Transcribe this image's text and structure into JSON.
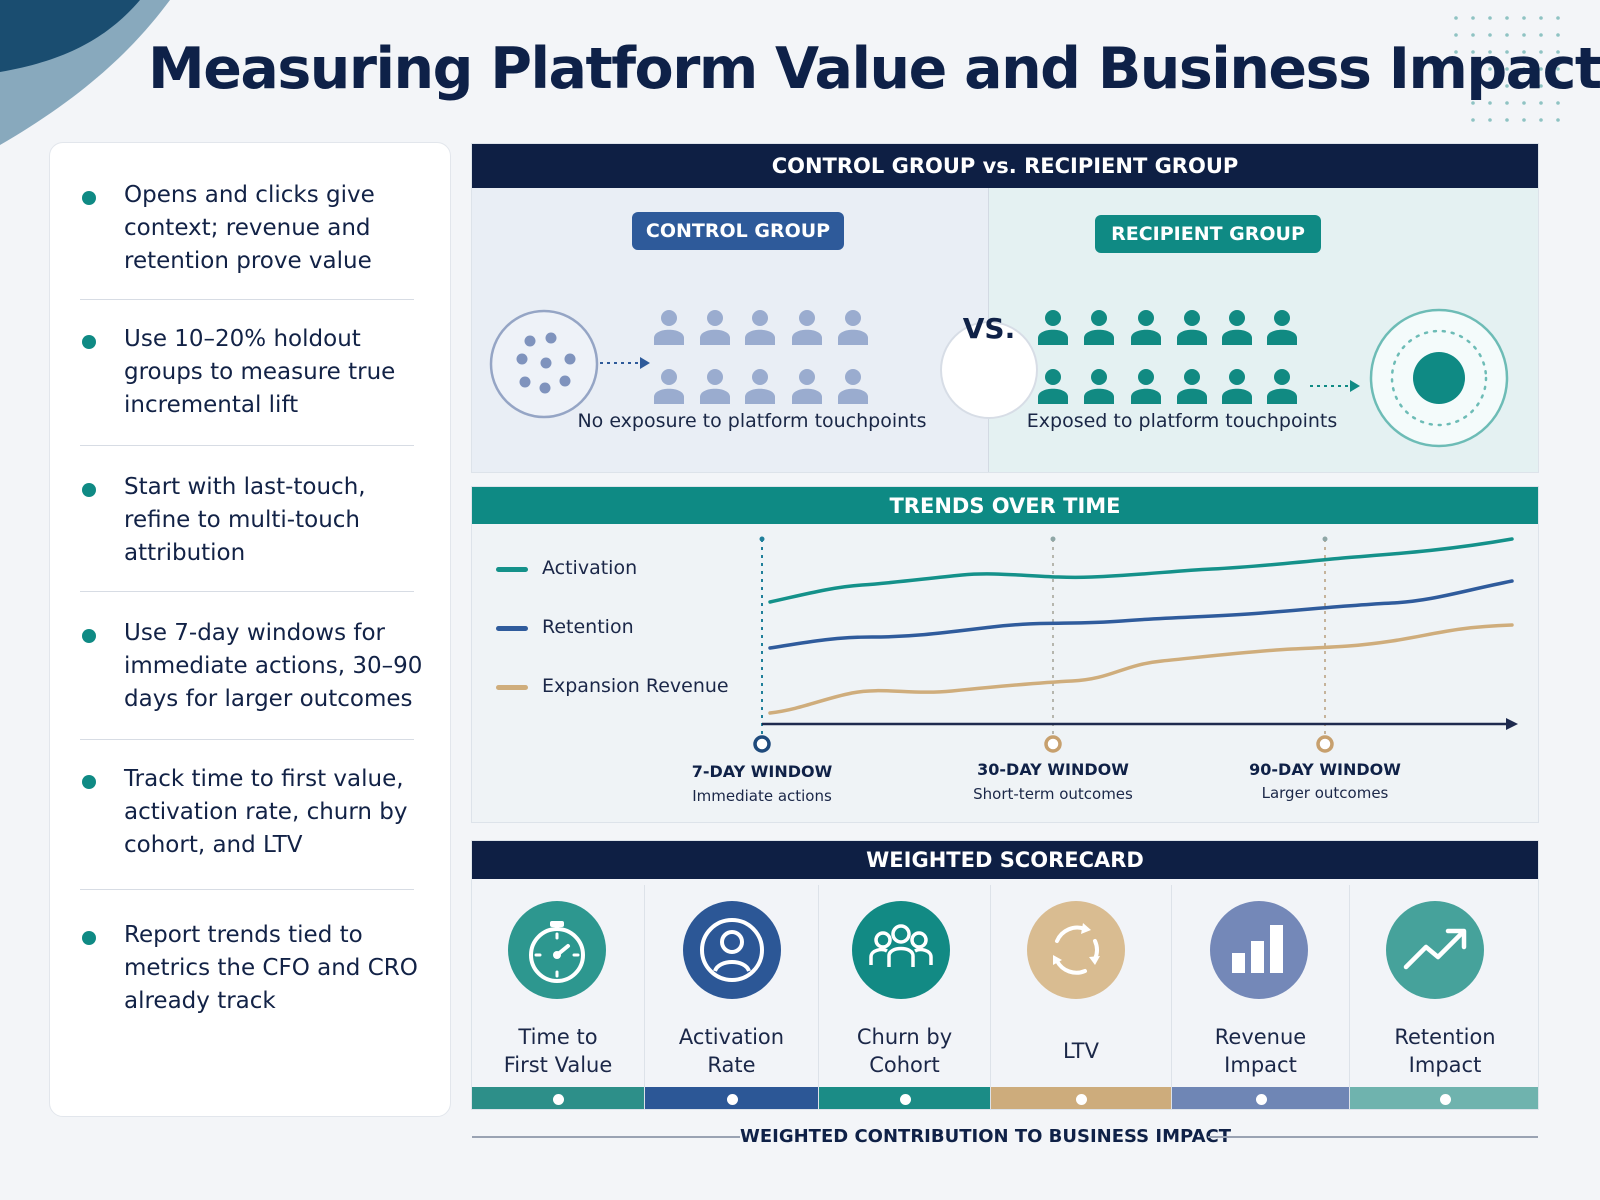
{
  "title": "Measuring Platform Value and Business Impact",
  "bullets": [
    "Opens and clicks give context; revenue and retention prove value",
    "Use 10–20% holdout groups to measure true incremental lift",
    "Start with last-touch, refine to multi-touch attribution",
    "Use 7-day windows for immediate actions, 30–90 days for larger outcomes",
    "Track time to first value, activation rate, churn by cohort, and LTV",
    "Report trends tied to metrics the CFO and CRO already track"
  ],
  "comparison": {
    "header": "CONTROL GROUP vs. RECIPIENT GROUP",
    "control": {
      "label": "CONTROL GROUP",
      "caption": "No exposure to platform touchpoints",
      "color": "#2e5a9a",
      "people_color": "#9aaccf"
    },
    "vs": "VS.",
    "recipient": {
      "label": "RECIPIENT GROUP",
      "caption": "Exposed to platform touchpoints",
      "color": "#0f8a84",
      "people_color": "#118a82"
    }
  },
  "trends": {
    "header": "TRENDS OVER TIME",
    "legend": [
      {
        "name": "Activation",
        "color": "#14918a"
      },
      {
        "name": "Retention",
        "color": "#2f5b9c"
      },
      {
        "name": "Expansion Revenue",
        "color": "#cfad7c"
      }
    ],
    "windows": [
      {
        "title": "7-DAY WINDOW",
        "sub": "Immediate actions",
        "color": "#1f4a7c"
      },
      {
        "title": "30-DAY WINDOW",
        "sub": "Short-term outcomes",
        "color": "#c7a06e"
      },
      {
        "title": "90-DAY WINDOW",
        "sub": "Larger outcomes",
        "color": "#c7a06e"
      }
    ]
  },
  "scorecard": {
    "header": "WEIGHTED SCORECARD",
    "items": [
      {
        "label": "Time to\nFirst Value",
        "icon": "stopwatch-icon",
        "icon_color": "#2d978f",
        "bar_color": "#2d8f89"
      },
      {
        "label": "Activation\nRate",
        "icon": "user-circle-icon",
        "icon_color": "#2c5796",
        "bar_color": "#2c5796"
      },
      {
        "label": "Churn by\nCohort",
        "icon": "group-icon",
        "icon_color": "#128a84",
        "bar_color": "#1b8c86"
      },
      {
        "label": "LTV",
        "icon": "cycle-icon",
        "icon_color": "#d9bc91",
        "bar_color": "#cdac7c"
      },
      {
        "label": "Revenue\nImpact",
        "icon": "bar-chart-icon",
        "icon_color": "#7488b8",
        "bar_color": "#6f86b5"
      },
      {
        "label": "Retention\nImpact",
        "icon": "trend-up-icon",
        "icon_color": "#46a29b",
        "bar_color": "#6fb3ae"
      }
    ],
    "footer": "WEIGHTED CONTRIBUTION TO BUSINESS IMPACT"
  }
}
